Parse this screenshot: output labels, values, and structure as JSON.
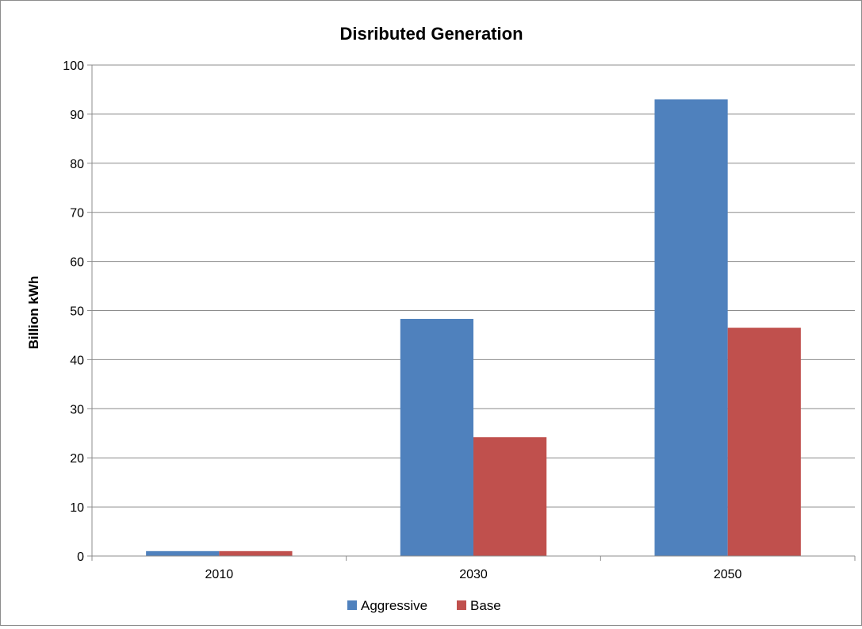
{
  "chart_data": {
    "type": "bar",
    "title": "Disributed Generation",
    "xlabel": "",
    "ylabel": "Billion kWh",
    "categories": [
      "2010",
      "2030",
      "2050"
    ],
    "series": [
      {
        "name": "Aggressive",
        "color": "#4F81BD",
        "values": [
          1,
          48.3,
          93
        ]
      },
      {
        "name": "Base",
        "color": "#C0504D",
        "values": [
          1,
          24.2,
          46.5
        ]
      }
    ],
    "ylim": [
      0,
      100
    ],
    "yticks": [
      0,
      10,
      20,
      30,
      40,
      50,
      60,
      70,
      80,
      90,
      100
    ],
    "grid": true,
    "legend_position": "bottom"
  }
}
